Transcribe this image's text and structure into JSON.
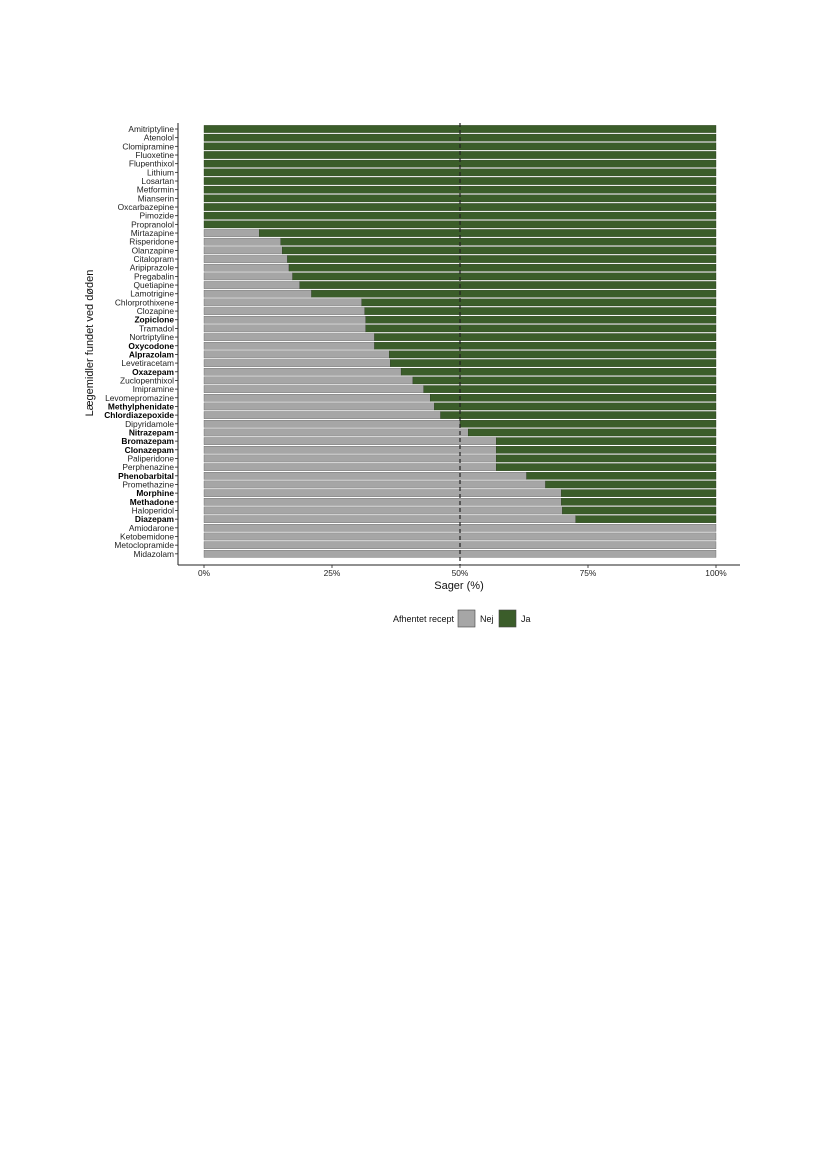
{
  "chart_data": {
    "type": "bar",
    "orientation": "horizontal",
    "stacked": true,
    "xlabel": "Sager (%)",
    "ylabel": "Lægemidler fundet ved døden",
    "xlim": [
      0,
      100
    ],
    "x_ticks": [
      "0%",
      "25%",
      "50%",
      "75%",
      "100%"
    ],
    "reference_line": 50,
    "grid": false,
    "legend": {
      "title": "Afhentet recept",
      "position": "bottom",
      "entries": [
        {
          "name": "Nej",
          "color": "#a6a6a6"
        },
        {
          "name": "Ja",
          "color": "#3b5d2a"
        }
      ]
    },
    "categories": [
      {
        "name": "Amitriptyline",
        "bold": false,
        "nej": 0
      },
      {
        "name": "Atenolol",
        "bold": false,
        "nej": 0
      },
      {
        "name": "Clomipramine",
        "bold": false,
        "nej": 0
      },
      {
        "name": "Fluoxetine",
        "bold": false,
        "nej": 0
      },
      {
        "name": "Flupenthixol",
        "bold": false,
        "nej": 0
      },
      {
        "name": "Lithium",
        "bold": false,
        "nej": 0
      },
      {
        "name": "Losartan",
        "bold": false,
        "nej": 0
      },
      {
        "name": "Metformin",
        "bold": false,
        "nej": 0
      },
      {
        "name": "Mianserin",
        "bold": false,
        "nej": 0
      },
      {
        "name": "Oxcarbazepine",
        "bold": false,
        "nej": 0
      },
      {
        "name": "Pimozide",
        "bold": false,
        "nej": 0
      },
      {
        "name": "Propranolol",
        "bold": false,
        "nej": 0
      },
      {
        "name": "Mirtazapine",
        "bold": false,
        "nej": 10.8
      },
      {
        "name": "Risperidone",
        "bold": false,
        "nej": 15
      },
      {
        "name": "Olanzapine",
        "bold": false,
        "nej": 15.3
      },
      {
        "name": "Citalopram",
        "bold": false,
        "nej": 16.3
      },
      {
        "name": "Aripiprazole",
        "bold": false,
        "nej": 16.6
      },
      {
        "name": "Pregabalin",
        "bold": false,
        "nej": 17.3
      },
      {
        "name": "Quetiapine",
        "bold": false,
        "nej": 18.7
      },
      {
        "name": "Lamotrigine",
        "bold": false,
        "nej": 21
      },
      {
        "name": "Chlorprothixene",
        "bold": false,
        "nej": 30.8
      },
      {
        "name": "Clozapine",
        "bold": false,
        "nej": 31.4
      },
      {
        "name": "Zopiclone",
        "bold": true,
        "nej": 31.6
      },
      {
        "name": "Tramadol",
        "bold": false,
        "nej": 31.6
      },
      {
        "name": "Nortriptyline",
        "bold": false,
        "nej": 33.3
      },
      {
        "name": "Oxycodone",
        "bold": true,
        "nej": 33.3
      },
      {
        "name": "Alprazolam",
        "bold": true,
        "nej": 36.2
      },
      {
        "name": "Levetiracetam",
        "bold": false,
        "nej": 36.4
      },
      {
        "name": "Oxazepam",
        "bold": true,
        "nej": 38.5
      },
      {
        "name": "Zuclopenthixol",
        "bold": false,
        "nej": 40.8
      },
      {
        "name": "Imipramine",
        "bold": false,
        "nej": 42.9
      },
      {
        "name": "Levomepromazine",
        "bold": false,
        "nej": 44.2
      },
      {
        "name": "Methylphenidate",
        "bold": true,
        "nej": 45
      },
      {
        "name": "Chlordiazepoxide",
        "bold": true,
        "nej": 46.2
      },
      {
        "name": "Dipyridamole",
        "bold": false,
        "nej": 50
      },
      {
        "name": "Nitrazepam",
        "bold": true,
        "nej": 51.6
      },
      {
        "name": "Bromazepam",
        "bold": true,
        "nej": 57.1
      },
      {
        "name": "Clonazepam",
        "bold": true,
        "nej": 57.1
      },
      {
        "name": "Paliperidone",
        "bold": false,
        "nej": 57.1
      },
      {
        "name": "Perphenazine",
        "bold": false,
        "nej": 57.1
      },
      {
        "name": "Phenobarbital",
        "bold": true,
        "nej": 63
      },
      {
        "name": "Promethazine",
        "bold": false,
        "nej": 66.7
      },
      {
        "name": "Morphine",
        "bold": true,
        "nej": 69.8
      },
      {
        "name": "Methadone",
        "bold": true,
        "nej": 69.8
      },
      {
        "name": "Haloperidol",
        "bold": false,
        "nej": 70
      },
      {
        "name": "Diazepam",
        "bold": true,
        "nej": 72.6
      },
      {
        "name": "Amiodarone",
        "bold": false,
        "nej": 100
      },
      {
        "name": "Ketobemidone",
        "bold": false,
        "nej": 100
      },
      {
        "name": "Metoclopramide",
        "bold": false,
        "nej": 100
      },
      {
        "name": "Midazolam",
        "bold": false,
        "nej": 100
      }
    ]
  }
}
